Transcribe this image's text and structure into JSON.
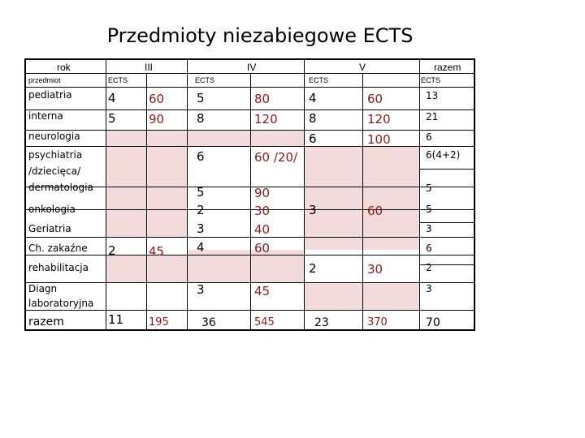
{
  "title": "Przedmioty niezabiegowe ECTS",
  "headers": {
    "rok": "rok",
    "y3": "III",
    "y4": "IV",
    "y5": "V",
    "razem": "razem"
  },
  "subheaders": {
    "przedmiot": "przedmiot",
    "ects3": "ECTS",
    "ects4": "ECTS",
    "ects5": "ECTS",
    "ects_razem": "ECTS"
  },
  "rows": {
    "pediatria": {
      "label": "pediatria",
      "e3": "4",
      "h3": "60",
      "e4": "5",
      "h4": "80",
      "e5": "4",
      "h5": "60",
      "tot": "13"
    },
    "interna": {
      "label": "interna",
      "e3": "5",
      "h3": "90",
      "e4": "8",
      "h4": "120",
      "e5": "8",
      "h5": "120",
      "tot": "21"
    },
    "neurologia": {
      "label": "neurologia",
      "e5": "6",
      "h5": "100",
      "tot": "6"
    },
    "psychiatria": {
      "label1": "psychiatria",
      "label2": "/dziecięca/",
      "e4": "6",
      "h4": "60 /20/",
      "tot": "6(4+2)"
    },
    "dermatologia": {
      "label": "dermatologia",
      "e4": "5",
      "h4": "90",
      "tot": "5"
    },
    "onkologia": {
      "label": "onkologia",
      "e4": "2",
      "h4": "30",
      "e5": "3",
      "h5": "60",
      "tot": "5"
    },
    "geriatria": {
      "label": "Geriatria",
      "e4": "3",
      "h4": "40",
      "tot": "3"
    },
    "zakazne": {
      "label": "Ch. zakaźne",
      "e3": "2",
      "h3": "45",
      "e4": "4",
      "h4": "60",
      "tot": "6"
    },
    "rehabilitacja": {
      "label": "rehabilitacja",
      "e5": "2",
      "h5": "30",
      "tot": "2"
    },
    "diagn": {
      "label1": "Diagn",
      "label2": "laboratoryjna",
      "e4": "3",
      "h4": "45",
      "tot": "3"
    },
    "razem": {
      "label": "razem",
      "e3": "11",
      "h3": "195",
      "e4": "36",
      "h4": "545",
      "e5": "23",
      "h5": "370",
      "tot": "70"
    }
  },
  "colors": {
    "fill": "#f2dcdb",
    "hours_text": "#8b1a1a"
  }
}
